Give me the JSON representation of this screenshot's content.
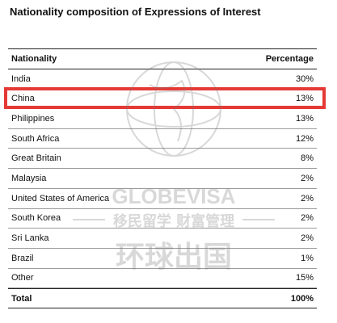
{
  "title": "Nationality composition of Expressions of Interest",
  "table": {
    "headers": [
      "Nationality",
      "Percentage"
    ],
    "rows": [
      {
        "nationality": "India",
        "percentage": "30%"
      },
      {
        "nationality": "China",
        "percentage": "13%"
      },
      {
        "nationality": "Philippines",
        "percentage": "13%"
      },
      {
        "nationality": "South Africa",
        "percentage": "12%"
      },
      {
        "nationality": "Great Britain",
        "percentage": "8%"
      },
      {
        "nationality": "Malaysia",
        "percentage": "2%"
      },
      {
        "nationality": "United States of America",
        "percentage": "2%"
      },
      {
        "nationality": "South Korea",
        "percentage": "2%"
      },
      {
        "nationality": "Sri Lanka",
        "percentage": "2%"
      },
      {
        "nationality": "Brazil",
        "percentage": "1%"
      },
      {
        "nationality": "Other",
        "percentage": "15%"
      }
    ],
    "total": {
      "label": "Total",
      "value": "100%"
    }
  },
  "watermark": {
    "brand": "GLOBEVISA",
    "slogan": "移民留学 财富管理",
    "chinese_name": "环球出国"
  },
  "highlight_color": "#e53935"
}
